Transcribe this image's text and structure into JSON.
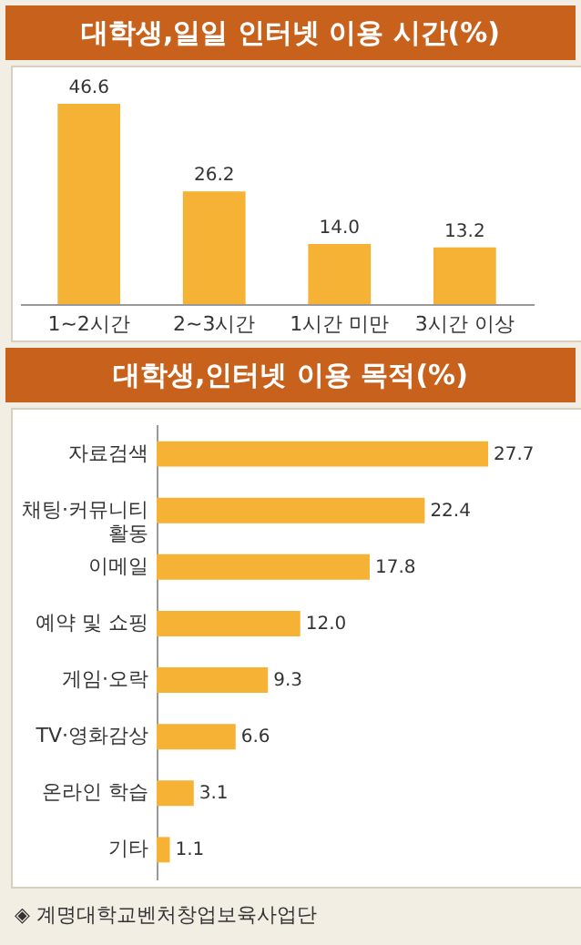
{
  "chart_data": [
    {
      "type": "bar",
      "title": "대학생,일일 인터넷 이용 시간(%)",
      "categories": [
        "1~2시간",
        "2~3시간",
        "1시간 미만",
        "3시간 이상"
      ],
      "values": [
        46.6,
        26.2,
        14.0,
        13.2
      ],
      "color": "#f5b235",
      "value_labels": [
        "46.6",
        "26.2",
        "14.0",
        "13.2"
      ]
    },
    {
      "type": "bar",
      "orientation": "horizontal",
      "title": "대학생,인터넷 이용 목적(%)",
      "categories": [
        "자료검색",
        "채팅·커뮤니티 활동",
        "이메일",
        "예약 및 쇼핑",
        "게임·오락",
        "TV·영화감상",
        "온라인 학습",
        "기타"
      ],
      "values": [
        27.7,
        22.4,
        17.8,
        12.0,
        9.3,
        6.6,
        3.1,
        1.1
      ],
      "color": "#f5b235",
      "value_labels": [
        "27.7",
        "22.4",
        "17.8",
        "12.0",
        "9.3",
        "6.6",
        "3.1",
        "1.1"
      ],
      "annotations": [
        "◈ 계명대학교벤처창업보육사업단"
      ]
    }
  ]
}
